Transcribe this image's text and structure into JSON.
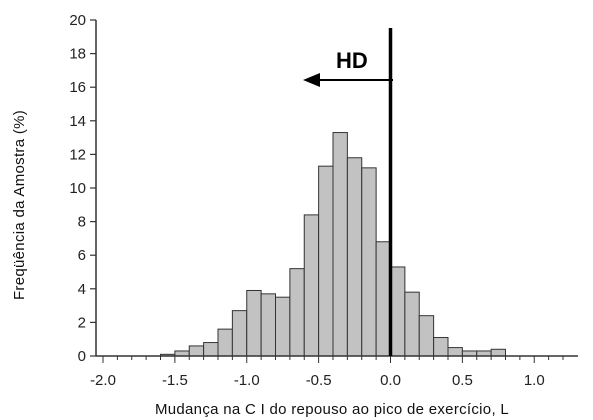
{
  "chart_data": {
    "type": "bar",
    "xlabel": "Mudança na C I do repouso ao pico de exercício, L",
    "ylabel": "Freqüência da Amostra (%)",
    "xlim": [
      -2.0,
      1.2
    ],
    "ylim": [
      0,
      20
    ],
    "x_ticks": [
      "-2.0",
      "-1.5",
      "-1.0",
      "-0.5",
      "0.0",
      "0.5",
      "1.0"
    ],
    "y_ticks": [
      "0",
      "2",
      "4",
      "6",
      "8",
      "10",
      "12",
      "14",
      "16",
      "18",
      "20"
    ],
    "bin_width": 0.1,
    "bins": [
      {
        "x": -1.55,
        "value": 0.1
      },
      {
        "x": -1.45,
        "value": 0.3
      },
      {
        "x": -1.35,
        "value": 0.6
      },
      {
        "x": -1.25,
        "value": 0.8
      },
      {
        "x": -1.15,
        "value": 1.6
      },
      {
        "x": -1.05,
        "value": 2.7
      },
      {
        "x": -0.95,
        "value": 3.9
      },
      {
        "x": -0.85,
        "value": 3.7
      },
      {
        "x": -0.75,
        "value": 3.5
      },
      {
        "x": -0.65,
        "value": 5.2
      },
      {
        "x": -0.55,
        "value": 8.4
      },
      {
        "x": -0.45,
        "value": 11.3
      },
      {
        "x": -0.35,
        "value": 13.3
      },
      {
        "x": -0.25,
        "value": 11.8
      },
      {
        "x": -0.15,
        "value": 11.2
      },
      {
        "x": -0.05,
        "value": 6.8
      },
      {
        "x": 0.05,
        "value": 5.3
      },
      {
        "x": 0.15,
        "value": 3.8
      },
      {
        "x": 0.25,
        "value": 2.4
      },
      {
        "x": 0.35,
        "value": 1.1
      },
      {
        "x": 0.45,
        "value": 0.5
      },
      {
        "x": 0.55,
        "value": 0.3
      },
      {
        "x": 0.65,
        "value": 0.3
      },
      {
        "x": 0.75,
        "value": 0.4
      }
    ],
    "reference_line": {
      "x": 0.0
    },
    "annotation": {
      "text": "HD",
      "arrow": "left"
    },
    "grid": false,
    "colors": {
      "bar_fill": "#c2c2c2",
      "bar_stroke": "#333333",
      "reference_line": "#000000"
    }
  }
}
